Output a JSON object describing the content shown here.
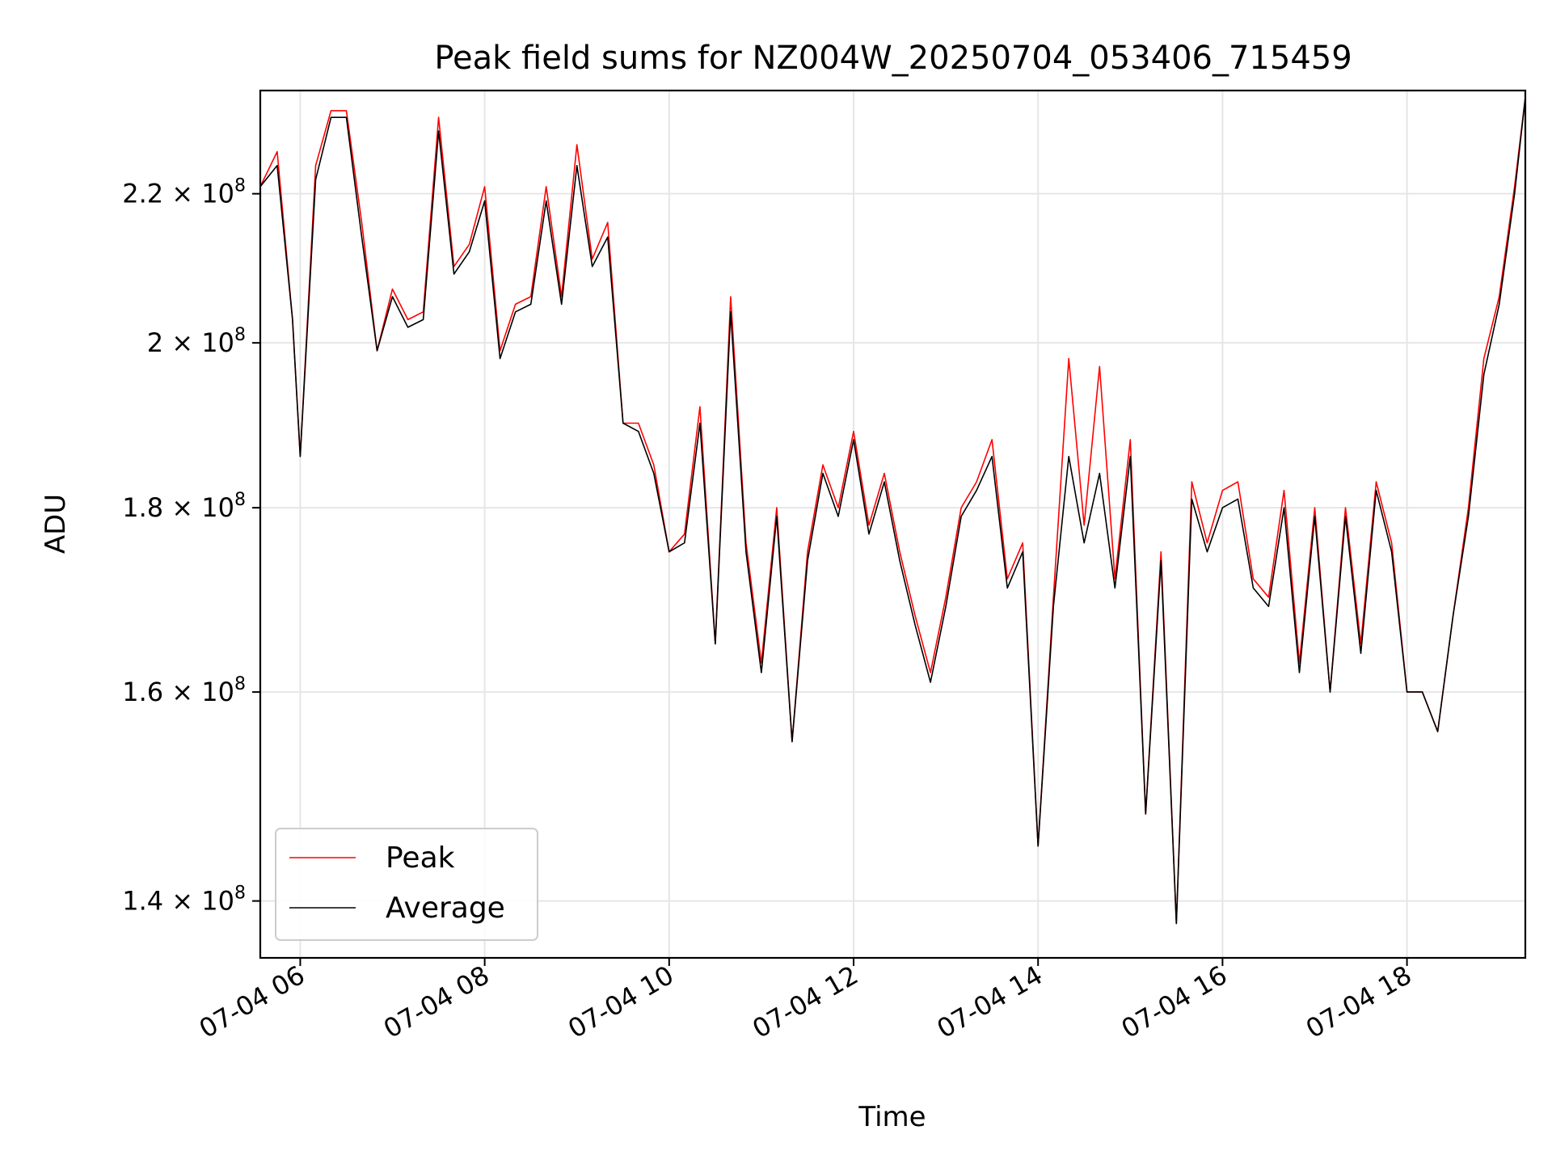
{
  "chart_data": {
    "type": "line",
    "title": "Peak field sums for NZ004W_20250704_053406_715459",
    "xlabel": "Time",
    "ylabel": "ADU",
    "y_scale": "log",
    "grid": true,
    "legend_position": "lower-left",
    "x_range": [
      "2025-07-04 05:34",
      "2025-07-04 19:17"
    ],
    "ylim": [
      135000000,
      235000000
    ],
    "x_ticks": [
      "07-04 06",
      "07-04 08",
      "07-04 10",
      "07-04 12",
      "07-04 14",
      "07-04 16",
      "07-04 18"
    ],
    "y_ticks": [
      {
        "value": 140000000,
        "mantissa": "1.4",
        "exp": "8"
      },
      {
        "value": 160000000,
        "mantissa": "1.6",
        "exp": "8"
      },
      {
        "value": 180000000,
        "mantissa": "1.8",
        "exp": "8"
      },
      {
        "value": 200000000,
        "mantissa": "2",
        "exp": "8"
      },
      {
        "value": 220000000,
        "mantissa": "2.2",
        "exp": "8"
      }
    ],
    "x_times": [
      "05:34",
      "05:45",
      "05:55",
      "06:00",
      "06:10",
      "06:20",
      "06:30",
      "06:40",
      "06:50",
      "07:00",
      "07:10",
      "07:20",
      "07:30",
      "07:40",
      "07:50",
      "08:00",
      "08:10",
      "08:20",
      "08:30",
      "08:40",
      "08:50",
      "09:00",
      "09:10",
      "09:20",
      "09:30",
      "09:40",
      "09:50",
      "10:00",
      "10:10",
      "10:20",
      "10:30",
      "10:40",
      "10:50",
      "11:00",
      "11:10",
      "11:20",
      "11:30",
      "11:40",
      "11:50",
      "12:00",
      "12:10",
      "12:20",
      "12:30",
      "12:40",
      "12:50",
      "13:00",
      "13:10",
      "13:20",
      "13:30",
      "13:40",
      "13:50",
      "14:00",
      "14:10",
      "14:20",
      "14:30",
      "14:40",
      "14:50",
      "15:00",
      "15:10",
      "15:20",
      "15:30",
      "15:40",
      "15:50",
      "16:00",
      "16:10",
      "16:20",
      "16:30",
      "16:40",
      "16:50",
      "17:00",
      "17:10",
      "17:20",
      "17:30",
      "17:40",
      "17:50",
      "18:00",
      "18:10",
      "18:20",
      "18:30",
      "18:40",
      "18:50",
      "19:00",
      "19:10",
      "19:17"
    ],
    "series": [
      {
        "name": "Peak",
        "color": "#ff0000",
        "values": [
          221,
          226,
          203,
          186,
          224,
          232,
          232,
          216,
          199,
          207,
          203,
          204,
          231,
          210,
          213,
          221,
          199,
          205,
          206,
          221,
          206,
          227,
          211,
          216,
          190,
          190,
          185,
          175,
          177,
          192,
          165,
          206,
          176,
          163,
          180,
          155,
          175,
          185,
          180,
          189,
          178,
          184,
          175,
          168,
          162,
          170,
          180,
          183,
          188,
          172,
          176,
          145,
          170,
          198,
          178,
          197,
          172,
          188,
          148,
          175,
          138,
          183,
          176,
          182,
          183,
          172,
          170,
          182,
          163,
          180,
          160,
          180,
          165,
          183,
          176,
          160,
          160,
          156,
          168,
          180,
          198,
          206,
          221,
          234
        ]
      },
      {
        "name": "Average",
        "color": "#000000",
        "values": [
          221,
          224,
          203,
          186,
          222,
          231,
          231,
          214,
          199,
          206,
          202,
          203,
          229,
          209,
          212,
          219,
          198,
          204,
          205,
          219,
          205,
          224,
          210,
          214,
          190,
          189,
          184,
          175,
          176,
          190,
          165,
          204,
          175,
          162,
          179,
          155,
          174,
          184,
          179,
          188,
          177,
          183,
          174,
          167,
          161,
          169,
          179,
          182,
          186,
          171,
          175,
          145,
          169,
          186,
          176,
          184,
          171,
          186,
          148,
          174,
          138,
          181,
          175,
          180,
          181,
          171,
          169,
          180,
          162,
          179,
          160,
          179,
          164,
          182,
          175,
          160,
          160,
          156,
          168,
          179,
          196,
          205,
          220,
          234
        ]
      }
    ]
  }
}
